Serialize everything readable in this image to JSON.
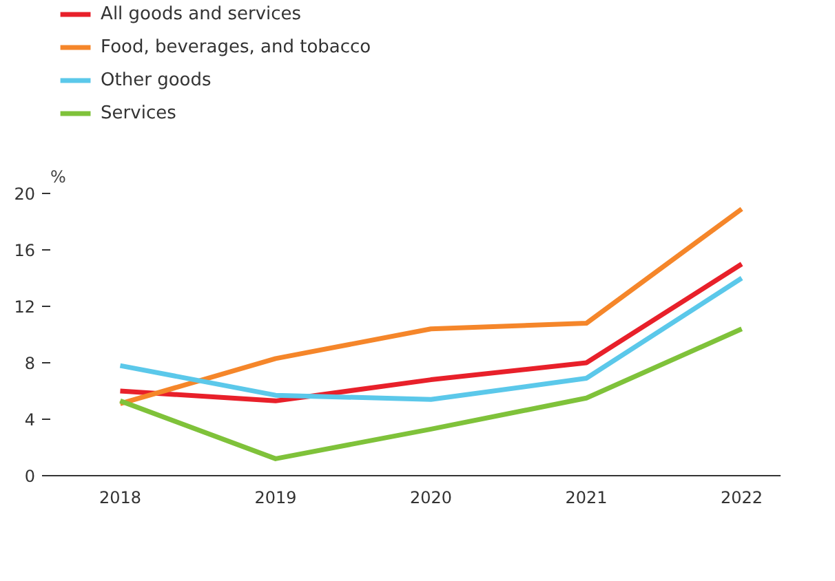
{
  "chart_data": {
    "type": "line",
    "ylabel": "%",
    "categories": [
      "2018",
      "2019",
      "2020",
      "2021",
      "2022"
    ],
    "series": [
      {
        "name": "All goods and services",
        "color": "#e8202a",
        "values": [
          6.0,
          5.3,
          6.8,
          8.0,
          15.0
        ]
      },
      {
        "name": "Food, beverages, and tobacco",
        "color": "#f5862a",
        "values": [
          5.1,
          8.3,
          10.4,
          10.8,
          18.9
        ]
      },
      {
        "name": "Other goods",
        "color": "#5bc8ea",
        "values": [
          7.8,
          5.7,
          5.4,
          6.9,
          14.0
        ]
      },
      {
        "name": "Services",
        "color": "#7fc23a",
        "values": [
          5.3,
          1.2,
          3.3,
          5.5,
          10.4
        ]
      }
    ],
    "ylim": [
      0,
      20
    ],
    "yticks": [
      0,
      4,
      8,
      12,
      16,
      20
    ],
    "grid": false,
    "legend": "top left",
    "marker": "none",
    "line_style": "solid"
  }
}
